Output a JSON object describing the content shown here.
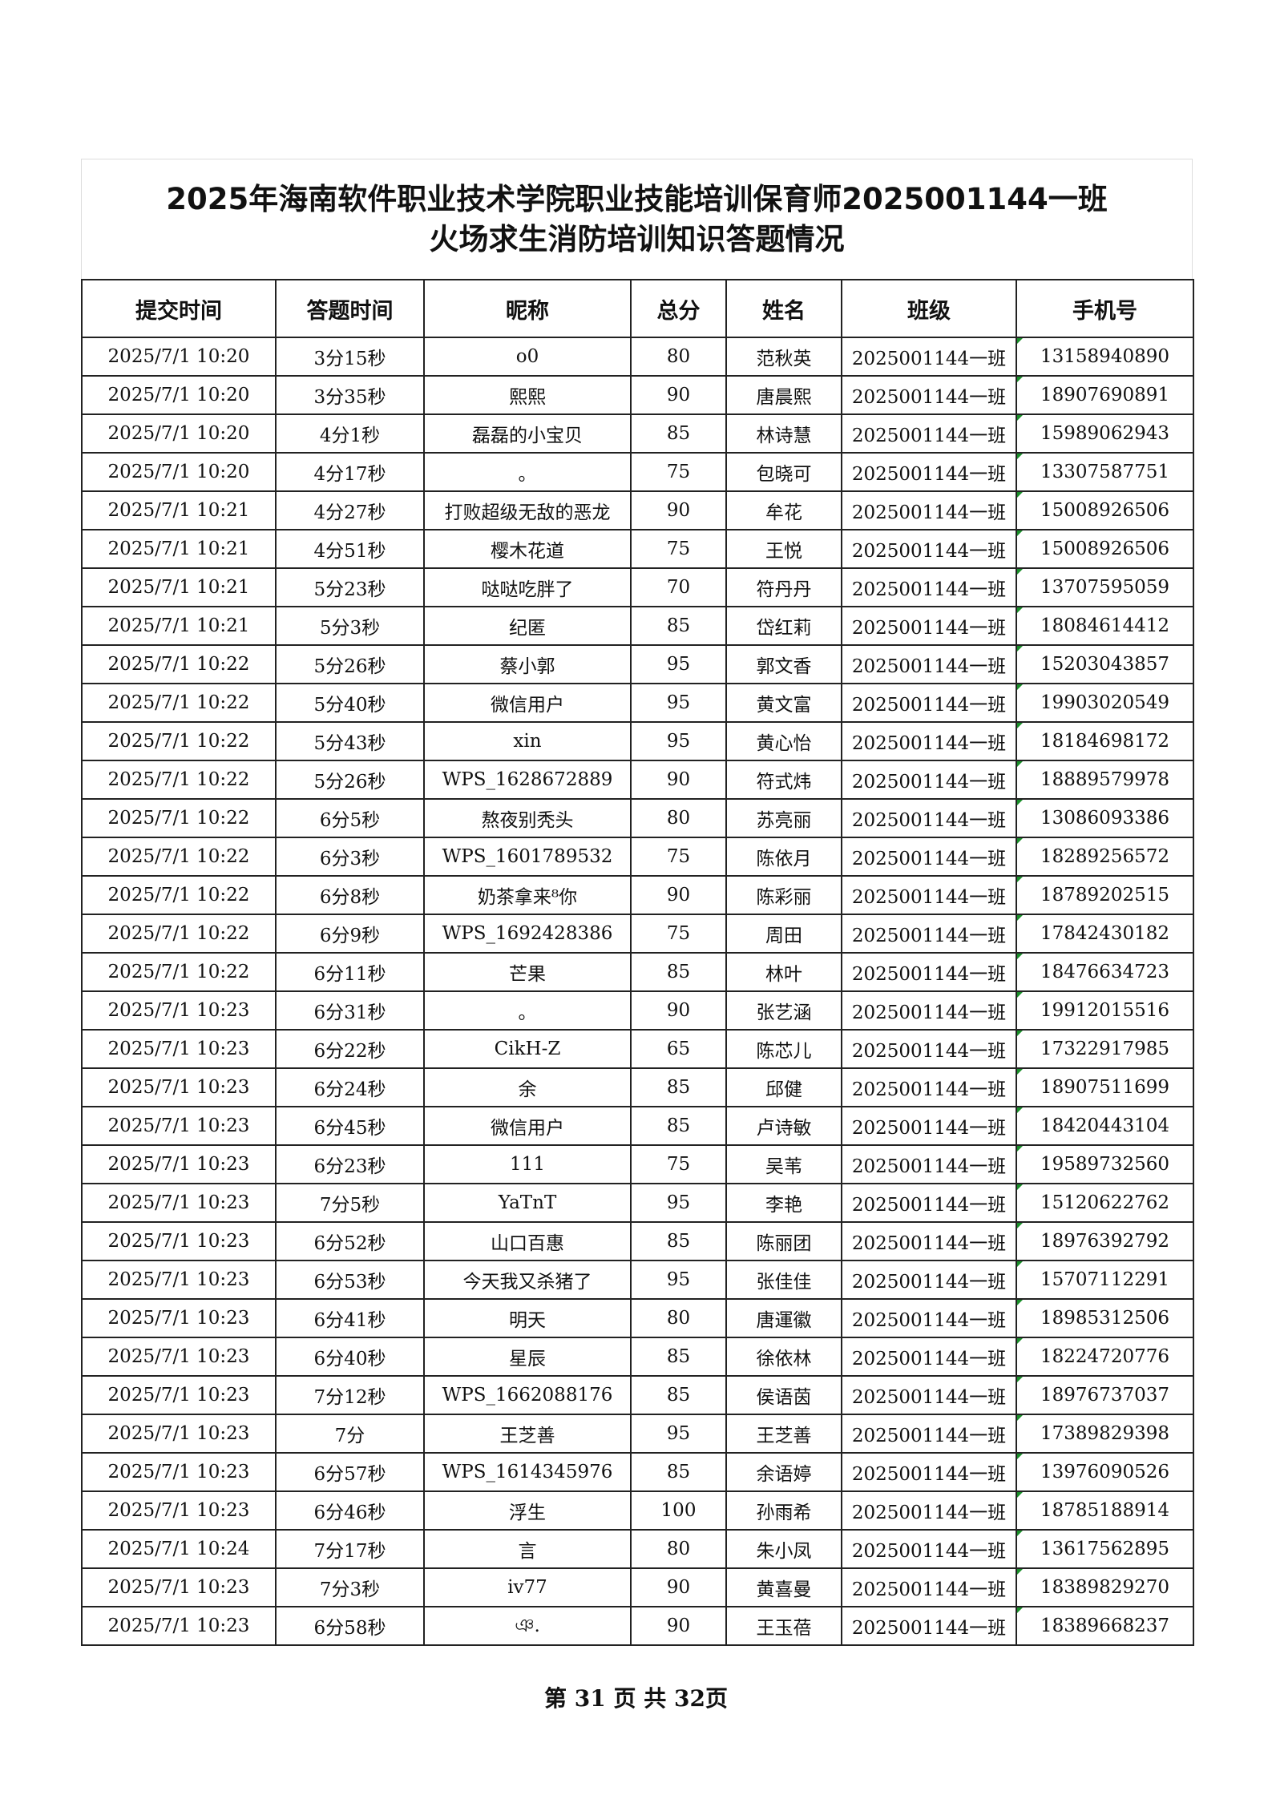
{
  "title": {
    "line1": "2025年海南软件职业技术学院职业技能培训保育师2025001144一班",
    "line2": "火场求生消防培训知识答题情况"
  },
  "columns": [
    "提交时间",
    "答题时间",
    "昵称",
    "总分",
    "姓名",
    "班级",
    "手机号"
  ],
  "rows": [
    [
      "2025/7/1 10:20",
      "3分15秒",
      "o0",
      "80",
      "范秋英",
      "2025001144一班",
      "13158940890"
    ],
    [
      "2025/7/1 10:20",
      "3分35秒",
      "熙熙",
      "90",
      "唐晨熙",
      "2025001144一班",
      "18907690891"
    ],
    [
      "2025/7/1 10:20",
      "4分1秒",
      "磊磊的小宝贝",
      "85",
      "林诗慧",
      "2025001144一班",
      "15989062943"
    ],
    [
      "2025/7/1 10:20",
      "4分17秒",
      "。",
      "75",
      "包晓可",
      "2025001144一班",
      "13307587751"
    ],
    [
      "2025/7/1 10:21",
      "4分27秒",
      "打败超级无敌的恶龙",
      "90",
      "牟花",
      "2025001144一班",
      "15008926506"
    ],
    [
      "2025/7/1 10:21",
      "4分51秒",
      "樱木花道",
      "75",
      "王悦",
      "2025001144一班",
      "15008926506"
    ],
    [
      "2025/7/1 10:21",
      "5分23秒",
      "哒哒吃胖了",
      "70",
      "符丹丹",
      "2025001144一班",
      "13707595059"
    ],
    [
      "2025/7/1 10:21",
      "5分3秒",
      "纪匿",
      "85",
      "岱红莉",
      "2025001144一班",
      "18084614412"
    ],
    [
      "2025/7/1 10:22",
      "5分26秒",
      "蔡小郭",
      "95",
      "郭文香",
      "2025001144一班",
      "15203043857"
    ],
    [
      "2025/7/1 10:22",
      "5分40秒",
      "微信用户",
      "95",
      "黄文富",
      "2025001144一班",
      "19903020549"
    ],
    [
      "2025/7/1 10:22",
      "5分43秒",
      "xin",
      "95",
      "黄心怡",
      "2025001144一班",
      "18184698172"
    ],
    [
      "2025/7/1 10:22",
      "5分26秒",
      "WPS_1628672889",
      "90",
      "符式炜",
      "2025001144一班",
      "18889579978"
    ],
    [
      "2025/7/1 10:22",
      "6分5秒",
      "熬夜别秃头",
      "80",
      "苏亮丽",
      "2025001144一班",
      "13086093386"
    ],
    [
      "2025/7/1 10:22",
      "6分3秒",
      "WPS_1601789532",
      "75",
      "陈依月",
      "2025001144一班",
      "18289256572"
    ],
    [
      "2025/7/1 10:22",
      "6分8秒",
      "奶茶拿来⁸你",
      "90",
      "陈彩丽",
      "2025001144一班",
      "18789202515"
    ],
    [
      "2025/7/1 10:22",
      "6分9秒",
      "WPS_1692428386",
      "75",
      "周田",
      "2025001144一班",
      "17842430182"
    ],
    [
      "2025/7/1 10:22",
      "6分11秒",
      "芒果",
      "85",
      "林叶",
      "2025001144一班",
      "18476634723"
    ],
    [
      "2025/7/1 10:23",
      "6分31秒",
      "。",
      "90",
      "张艺涵",
      "2025001144一班",
      "19912015516"
    ],
    [
      "2025/7/1 10:23",
      "6分22秒",
      "CikH-Z",
      "65",
      "陈芯儿",
      "2025001144一班",
      "17322917985"
    ],
    [
      "2025/7/1 10:23",
      "6分24秒",
      "余",
      "85",
      "邱健",
      "2025001144一班",
      "18907511699"
    ],
    [
      "2025/7/1 10:23",
      "6分45秒",
      "微信用户",
      "85",
      "卢诗敏",
      "2025001144一班",
      "18420443104"
    ],
    [
      "2025/7/1 10:23",
      "6分23秒",
      "111",
      "75",
      "吴苇",
      "2025001144一班",
      "19589732560"
    ],
    [
      "2025/7/1 10:23",
      "7分5秒",
      "YaTnT",
      "95",
      "李艳",
      "2025001144一班",
      "15120622762"
    ],
    [
      "2025/7/1 10:23",
      "6分52秒",
      "山口百惠",
      "85",
      "陈丽团",
      "2025001144一班",
      "18976392792"
    ],
    [
      "2025/7/1 10:23",
      "6分53秒",
      "今天我又杀猪了",
      "95",
      "张佳佳",
      "2025001144一班",
      "15707112291"
    ],
    [
      "2025/7/1 10:23",
      "6分41秒",
      "明天",
      "80",
      "唐運徽",
      "2025001144一班",
      "18985312506"
    ],
    [
      "2025/7/1 10:23",
      "6分40秒",
      "星辰",
      "85",
      "徐依林",
      "2025001144一班",
      "18224720776"
    ],
    [
      "2025/7/1 10:23",
      "7分12秒",
      "WPS_1662088176",
      "85",
      "侯语茵",
      "2025001144一班",
      "18976737037"
    ],
    [
      "2025/7/1 10:23",
      "7分",
      "王芝善",
      "95",
      "王芝善",
      "2025001144一班",
      "17389829398"
    ],
    [
      "2025/7/1 10:23",
      "6分57秒",
      "WPS_1614345976",
      "85",
      "余语婷",
      "2025001144一班",
      "13976090526"
    ],
    [
      "2025/7/1 10:23",
      "6分46秒",
      "浮生",
      "100",
      "孙雨希",
      "2025001144一班",
      "18785188914"
    ],
    [
      "2025/7/1 10:24",
      "7分17秒",
      "言",
      "80",
      "朱小凤",
      "2025001144一班",
      "13617562895"
    ],
    [
      "2025/7/1 10:23",
      "7分3秒",
      "iv77",
      "90",
      "黄喜曼",
      "2025001144一班",
      "18389829270"
    ],
    [
      "2025/7/1 10:23",
      "6分58秒",
      "ঞ.",
      "90",
      "王玉蓓",
      "2025001144一班",
      "18389668237"
    ]
  ],
  "footer": "第 31 页 共 32页",
  "colors": {
    "cell_marker": "#1a8f2a",
    "border": "#222222"
  }
}
